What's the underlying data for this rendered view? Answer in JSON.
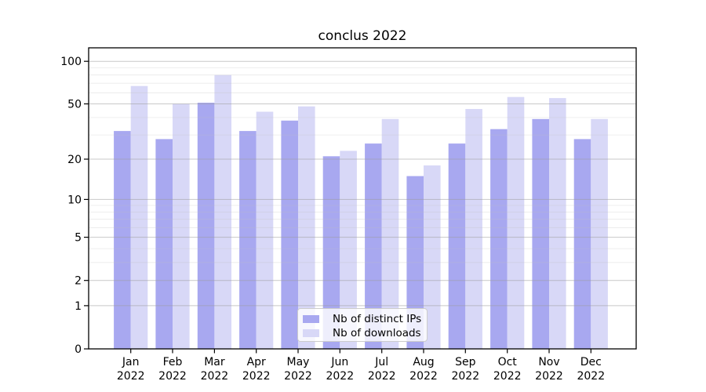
{
  "title": "conclus 2022",
  "legend": {
    "items": [
      {
        "label": "Nb of distinct IPs",
        "color": "#a8a8f0"
      },
      {
        "label": "Nb of downloads",
        "color": "#d8d8f7"
      }
    ]
  },
  "axes": {
    "y_tick_labels": [
      "100",
      "50",
      "20",
      "10",
      "5",
      "2",
      "1",
      "0"
    ],
    "x_tick_months": [
      "Jan",
      "Feb",
      "Mar",
      "Apr",
      "May",
      "Jun",
      "Jul",
      "Aug",
      "Sep",
      "Oct",
      "Nov",
      "Dec"
    ],
    "x_tick_year": "2022"
  },
  "chart_data": {
    "type": "bar",
    "title": "conclus 2022",
    "categories": [
      "Jan 2022",
      "Feb 2022",
      "Mar 2022",
      "Apr 2022",
      "May 2022",
      "Jun 2022",
      "Jul 2022",
      "Aug 2022",
      "Sep 2022",
      "Oct 2022",
      "Nov 2022",
      "Dec 2022"
    ],
    "series": [
      {
        "name": "Nb of distinct IPs",
        "color": "#a8a8f0",
        "values": [
          32,
          28,
          51,
          32,
          38,
          21,
          26,
          15,
          26,
          33,
          39,
          28
        ]
      },
      {
        "name": "Nb of downloads",
        "color": "#d8d8f7",
        "values": [
          67,
          50,
          80,
          44,
          48,
          23,
          39,
          18,
          46,
          56,
          55,
          39
        ]
      }
    ],
    "xlabel": "",
    "ylabel": "",
    "yscale": "log1p",
    "ylim": [
      0,
      124
    ],
    "yticks": [
      100,
      50,
      20,
      10,
      5,
      2,
      1,
      0
    ],
    "minor_yticks": [
      3,
      4,
      6,
      7,
      8,
      9,
      30,
      40,
      60,
      70,
      80,
      90
    ],
    "grid": true,
    "grid_above_bars": true,
    "legend_position": "lower center",
    "colors": {
      "grid_major": "#9c9c9c",
      "grid_minor": "#c0c0c0",
      "spine": "#000000",
      "tick_label": "#000000"
    }
  }
}
